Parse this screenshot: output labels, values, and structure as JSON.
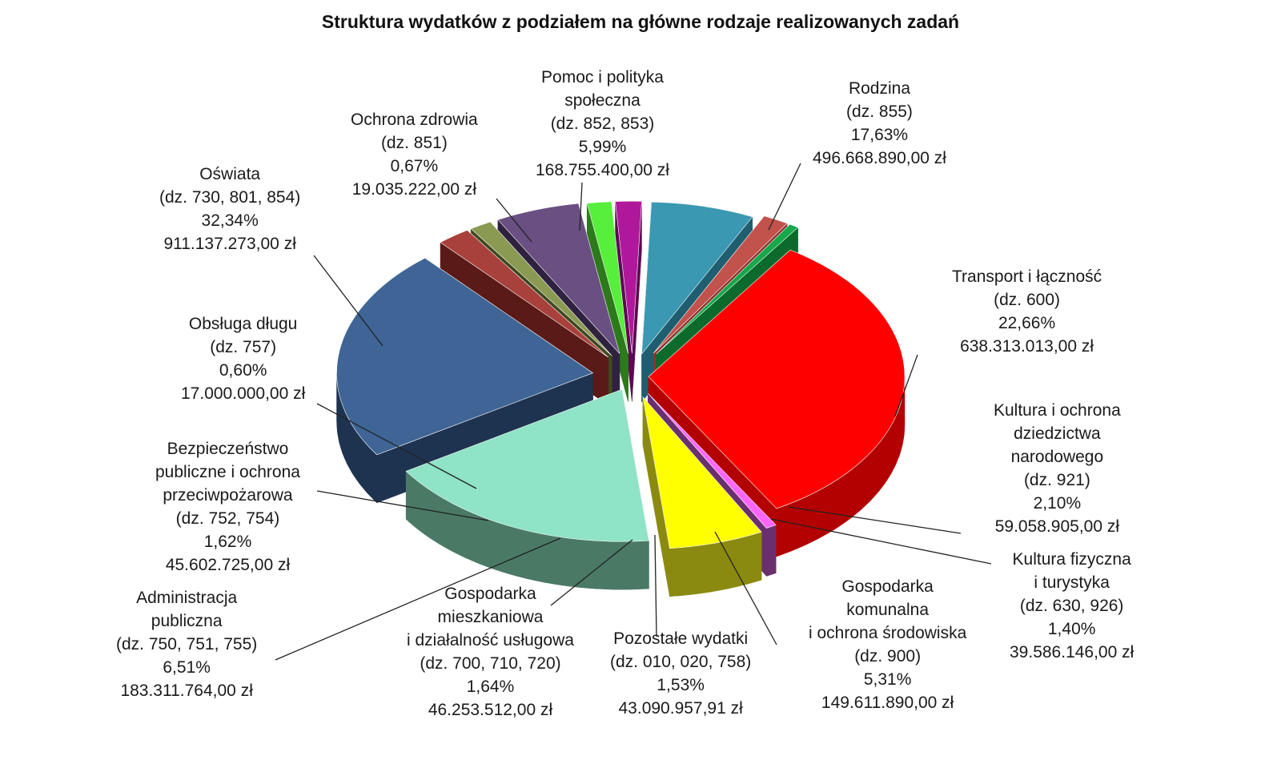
{
  "chart_data": {
    "type": "pie",
    "title": "Struktura wydatków z podziałem na główne rodzaje realizowanych zadań",
    "style": "3d-exploded",
    "slices": [
      {
        "key": "rodzina",
        "name": "Rodzina",
        "code": "(dz. 855)",
        "percent": 17.63,
        "percent_label": "17,63%",
        "amount_label": "496.668.890,00 zł",
        "color": "#8fe3c6",
        "side_color": "#4a7a66",
        "lines": [
          "Rodzina",
          "(dz. 855)",
          "17,63%",
          "496.668.890,00 zł"
        ]
      },
      {
        "key": "transport",
        "name": "Transport i łączność",
        "code": "(dz. 600)",
        "percent": 22.66,
        "percent_label": "22,66%",
        "amount_label": "638.313.013,00 zł",
        "color": "#3e6595",
        "side_color": "#1e3350",
        "lines": [
          "Transport i łączność",
          "(dz. 600)",
          "22,66%",
          "638.313.013,00 zł"
        ]
      },
      {
        "key": "kultura",
        "name": "Kultura i ochrona dziedzictwa narodowego",
        "code": "(dz. 921)",
        "percent": 2.1,
        "percent_label": "2,10%",
        "amount_label": "59.058.905,00 zł",
        "color": "#a8403b",
        "side_color": "#5a1a17",
        "lines": [
          "Kultura i ochrona",
          "dziedzictwa",
          "narodowego",
          "(dz. 921)",
          "2,10%",
          "59.058.905,00 zł"
        ]
      },
      {
        "key": "sport",
        "name": "Kultura fizyczna i turystyka",
        "code": "(dz. 630, 926)",
        "percent": 1.4,
        "percent_label": "1,40%",
        "amount_label": "39.586.146,00 zł",
        "color": "#8a9a52",
        "side_color": "#40481f",
        "lines": [
          "Kultura fizyczna",
          "i turystyka",
          "(dz. 630, 926)",
          "1,40%",
          "39.586.146,00 zł"
        ]
      },
      {
        "key": "komunalna",
        "name": "Gospodarka komunalna i ochrona środowiska",
        "code": "(dz. 900)",
        "percent": 5.31,
        "percent_label": "5,31%",
        "amount_label": "149.611.890,00 zł",
        "color": "#6a4f82",
        "side_color": "#2f2240",
        "lines": [
          "Gospodarka",
          "komunalna",
          "i ochrona środowiska",
          "(dz. 900)",
          "5,31%",
          "149.611.890,00 zł"
        ]
      },
      {
        "key": "pozostale",
        "name": "Pozostałe wydatki",
        "code": "(dz. 010, 020, 758)",
        "percent": 1.53,
        "percent_label": "1,53%",
        "amount_label": "43.090.957,91 zł",
        "color": "#57ee3c",
        "side_color": "#2c7a1c",
        "lines": [
          "Pozostałe wydatki",
          "(dz. 010, 020, 758)",
          "1,53%",
          "43.090.957,91 zł"
        ]
      },
      {
        "key": "mieszkaniowa",
        "name": "Gospodarka mieszkaniowa i działalność usługowa",
        "code": "(dz. 700, 710, 720)",
        "percent": 1.64,
        "percent_label": "1,64%",
        "amount_label": "46.253.512,00 zł",
        "color": "#b0189c",
        "side_color": "#5c0a50",
        "lines": [
          "Gospodarka",
          "mieszkaniowa",
          "i działalność usługowa",
          "(dz. 700, 710, 720)",
          "1,64%",
          "46.253.512,00 zł"
        ]
      },
      {
        "key": "administracja",
        "name": "Administracja publiczna",
        "code": "(dz. 750, 751, 755)",
        "percent": 6.51,
        "percent_label": "6,51%",
        "amount_label": "183.311.764,00 zł",
        "color": "#3a98b2",
        "side_color": "#1f5e70",
        "lines": [
          "Administracja",
          "publiczna",
          "(dz. 750, 751, 755)",
          "6,51%",
          "183.311.764,00 zł"
        ]
      },
      {
        "key": "bezpieczenstwo",
        "name": "Bezpieczeństwo publiczne i ochrona przeciwpożarowa",
        "code": "(dz. 752, 754)",
        "percent": 1.62,
        "percent_label": "1,62%",
        "amount_label": "45.602.725,00 zł",
        "color": "#c2524c",
        "side_color": "#8c3430",
        "lines": [
          "Bezpieczeństwo",
          "publiczne i ochrona",
          "przeciwpożarowa",
          "(dz. 752, 754)",
          "1,62%",
          "45.602.725,00 zł"
        ]
      },
      {
        "key": "dlug",
        "name": "Obsługa długu",
        "code": "(dz. 757)",
        "percent": 0.6,
        "percent_label": "0,60%",
        "amount_label": "17.000.000,00 zł",
        "color": "#17a84a",
        "side_color": "#0b6a2c",
        "lines": [
          "Obsługa długu",
          "(dz. 757)",
          "0,60%",
          "17.000.000,00 zł"
        ]
      },
      {
        "key": "oswiata",
        "name": "Oświata",
        "code": "(dz. 730, 801, 854)",
        "percent": 32.34,
        "percent_label": "32,34%",
        "amount_label": "911.137.273,00 zł",
        "color": "#ff0000",
        "side_color": "#b30000",
        "lines": [
          "Oświata",
          "(dz. 730, 801, 854)",
          "32,34%",
          "911.137.273,00 zł"
        ]
      },
      {
        "key": "zdrowie",
        "name": "Ochrona zdrowia",
        "code": "(dz. 851)",
        "percent": 0.67,
        "percent_label": "0,67%",
        "amount_label": "19.035.222,00 zł",
        "color": "#ff66ff",
        "side_color": "#6a2f6e",
        "lines": [
          "Ochrona zdrowia",
          "(dz. 851)",
          "0,67%",
          "19.035.222,00 zł"
        ]
      },
      {
        "key": "pomoc",
        "name": "Pomoc i polityka społeczna",
        "code": "(dz. 852, 853)",
        "percent": 5.99,
        "percent_label": "5,99%",
        "amount_label": "168.755.400,00 zł",
        "color": "#ffff00",
        "side_color": "#8a8a10",
        "lines": [
          "Pomoc i polityka",
          "społeczna",
          "(dz. 852, 853)",
          "5,99%",
          "168.755.400,00 zł"
        ]
      }
    ]
  }
}
